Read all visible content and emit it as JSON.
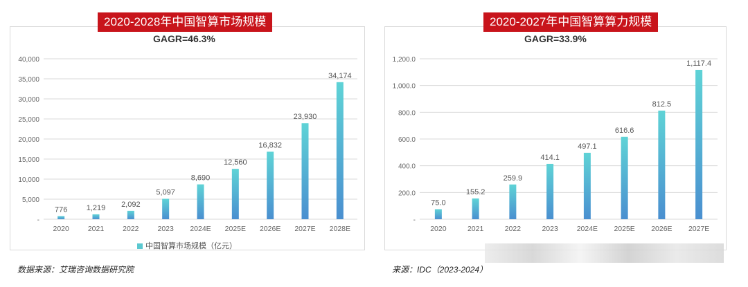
{
  "colors": {
    "accent": "#c8141b",
    "bar_top": "#5fd3d6",
    "bar_bottom": "#4a8fd0",
    "grid": "#d9d9d9"
  },
  "left": {
    "title": "2020-2028年中国智算市场规模",
    "cagr": "GAGR=46.3%",
    "legend": "中国智算市场规模（亿元）",
    "source": "数据来源：艾瑞咨询数据研究院"
  },
  "right": {
    "title": "2020-2027年中国智算算力规模",
    "cagr": "GAGR=33.9%",
    "source": "来源：IDC（2023-2024）"
  },
  "chart_data": [
    {
      "type": "bar",
      "title": "2020-2028年中国智算市场规模",
      "categories": [
        "2020",
        "2021",
        "2022",
        "2023",
        "2024E",
        "2025E",
        "2026E",
        "2027E",
        "2028E"
      ],
      "values": [
        776,
        1219,
        2092,
        5097,
        8690,
        12560,
        16832,
        23930,
        34174
      ],
      "value_labels": [
        "776",
        "1,219",
        "2,092",
        "5,097",
        "8,690",
        "12,560",
        "16,832",
        "23,930",
        "34,174"
      ],
      "series": [
        {
          "name": "中国智算市场规模（亿元）",
          "values": [
            776,
            1219,
            2092,
            5097,
            8690,
            12560,
            16832,
            23930,
            34174
          ]
        }
      ],
      "yticks": [
        "-",
        "5,000",
        "10,000",
        "15,000",
        "20,000",
        "25,000",
        "30,000",
        "35,000",
        "40,000"
      ],
      "ylim": [
        0,
        40000
      ],
      "grid": true,
      "legend": "bottom-center"
    },
    {
      "type": "bar",
      "title": "2020-2027年中国智算算力规模",
      "categories": [
        "2020",
        "2021",
        "2022",
        "2023",
        "2024E",
        "2025E",
        "2026E",
        "2027E"
      ],
      "values": [
        75.0,
        155.2,
        259.9,
        414.1,
        497.1,
        616.6,
        812.5,
        1117.4
      ],
      "value_labels": [
        "75.0",
        "155.2",
        "259.9",
        "414.1",
        "497.1",
        "616.6",
        "812.5",
        "1,117.4"
      ],
      "yticks": [
        "-",
        "200.0",
        "400.0",
        "600.0",
        "800.0",
        "1,000.0",
        "1,200.0"
      ],
      "ylim": [
        0,
        1200
      ],
      "grid": true
    }
  ]
}
